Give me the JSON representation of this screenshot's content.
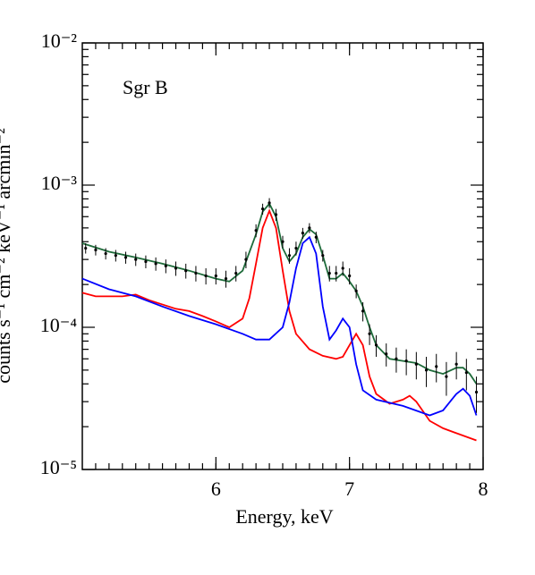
{
  "chart_data": {
    "type": "line",
    "annotation": "Sgr B",
    "xlabel": "Energy, keV",
    "ylabel": "counts s⁻¹ cm⁻² keV⁻¹ arcmin⁻²",
    "xlim": [
      5,
      8
    ],
    "ylim": [
      1e-05,
      0.01
    ],
    "ylog": true,
    "xticks": [
      6,
      7,
      8
    ],
    "xminorticks": [
      5.1,
      5.2,
      5.3,
      5.4,
      5.5,
      5.6,
      5.7,
      5.8,
      5.9,
      6,
      6.1,
      6.2,
      6.3,
      6.4,
      6.5,
      6.6,
      6.7,
      6.8,
      6.9,
      7,
      7.1,
      7.2,
      7.3,
      7.4,
      7.5,
      7.6,
      7.7,
      7.8,
      7.9
    ],
    "yticks": [
      {
        "value": 1e-05,
        "label": "10⁻⁵"
      },
      {
        "value": 0.0001,
        "label": "10⁻⁴"
      },
      {
        "value": 0.001,
        "label": "10⁻³"
      },
      {
        "value": 0.01,
        "label": "10⁻²"
      }
    ],
    "yminorticks": [
      2e-05,
      3e-05,
      4e-05,
      5e-05,
      6e-05,
      7e-05,
      8e-05,
      9e-05,
      0.0002,
      0.0003,
      0.0004,
      0.0005,
      0.0006,
      0.0007,
      0.0008,
      0.0009,
      0.002,
      0.003,
      0.004,
      0.005,
      0.006,
      0.007,
      0.008,
      0.009
    ],
    "data": {
      "color": "#000000",
      "x": [
        5.025,
        5.1,
        5.175,
        5.25,
        5.325,
        5.4,
        5.475,
        5.55,
        5.625,
        5.7,
        5.775,
        5.85,
        5.925,
        6.0,
        6.075,
        6.15,
        6.225,
        6.3,
        6.35,
        6.4,
        6.45,
        6.5,
        6.55,
        6.6,
        6.65,
        6.7,
        6.75,
        6.8,
        6.85,
        6.9,
        6.95,
        7.0,
        7.05,
        7.1,
        7.15,
        7.2,
        7.275,
        7.35,
        7.425,
        7.5,
        7.575,
        7.65,
        7.725,
        7.8,
        7.875,
        7.95
      ],
      "values": [
        0.00036,
        0.00035,
        0.00033,
        0.00032,
        0.00031,
        0.0003,
        0.00029,
        0.00028,
        0.00027,
        0.00026,
        0.00025,
        0.00024,
        0.00023,
        0.00023,
        0.00022,
        0.00024,
        0.0003,
        0.00048,
        0.00068,
        0.00075,
        0.00062,
        0.0004,
        0.00032,
        0.00036,
        0.00046,
        0.0005,
        0.00043,
        0.00032,
        0.00024,
        0.00024,
        0.00026,
        0.00023,
        0.00018,
        0.00013,
        9e-05,
        7.5e-05,
        6.5e-05,
        6e-05,
        5.8e-05,
        5.5e-05,
        5e-05,
        5.3e-05,
        4.5e-05,
        5.5e-05,
        4.8e-05,
        3.5e-05
      ],
      "errors": [
        3e-05,
        3e-05,
        3e-05,
        3e-05,
        3e-05,
        3e-05,
        3e-05,
        3e-05,
        3e-05,
        3e-05,
        3e-05,
        3e-05,
        3e-05,
        3e-05,
        3e-05,
        3e-05,
        4e-05,
        5e-05,
        6e-05,
        6e-05,
        6e-05,
        4e-05,
        4e-05,
        4e-05,
        4e-05,
        4e-05,
        4e-05,
        3e-05,
        3e-05,
        3e-05,
        3e-05,
        3e-05,
        2e-05,
        2e-05,
        1.5e-05,
        1.3e-05,
        1.2e-05,
        1.2e-05,
        1.2e-05,
        1.2e-05,
        1.2e-05,
        1.2e-05,
        1.2e-05,
        1.2e-05,
        1.2e-05,
        1e-05
      ]
    },
    "series": [
      {
        "color": "#1e6b3a",
        "x": [
          5.0,
          5.2,
          5.4,
          5.6,
          5.8,
          6.0,
          6.1,
          6.2,
          6.3,
          6.35,
          6.4,
          6.45,
          6.5,
          6.55,
          6.6,
          6.65,
          6.7,
          6.75,
          6.8,
          6.85,
          6.9,
          6.95,
          7.0,
          7.05,
          7.1,
          7.15,
          7.2,
          7.3,
          7.4,
          7.5,
          7.6,
          7.7,
          7.8,
          7.85,
          7.9,
          7.95
        ],
        "values": [
          0.00039,
          0.00034,
          0.00031,
          0.00028,
          0.00025,
          0.00022,
          0.00021,
          0.00025,
          0.00045,
          0.00065,
          0.00074,
          0.0006,
          0.00036,
          0.00029,
          0.00033,
          0.00043,
          0.00049,
          0.00045,
          0.00032,
          0.00022,
          0.00022,
          0.00024,
          0.00021,
          0.00018,
          0.00014,
          0.0001,
          7.5e-05,
          6e-05,
          5.8e-05,
          5.6e-05,
          5e-05,
          4.7e-05,
          5.2e-05,
          5.2e-05,
          4.7e-05,
          4e-05
        ]
      },
      {
        "color": "#ff0000",
        "x": [
          5.0,
          5.1,
          5.3,
          5.4,
          5.5,
          5.7,
          5.8,
          5.9,
          6.0,
          6.1,
          6.2,
          6.25,
          6.3,
          6.35,
          6.4,
          6.45,
          6.5,
          6.55,
          6.6,
          6.7,
          6.8,
          6.9,
          6.95,
          7.0,
          7.05,
          7.1,
          7.15,
          7.2,
          7.3,
          7.4,
          7.45,
          7.5,
          7.6,
          7.7,
          7.8,
          7.95
        ],
        "values": [
          0.000175,
          0.000165,
          0.000165,
          0.00017,
          0.000155,
          0.000135,
          0.00013,
          0.00012,
          0.00011,
          0.0001,
          0.000115,
          0.00016,
          0.00028,
          0.0005,
          0.00066,
          0.0005,
          0.00025,
          0.00013,
          9e-05,
          7e-05,
          6.3e-05,
          6e-05,
          6.2e-05,
          7.5e-05,
          9e-05,
          7.5e-05,
          4.5e-05,
          3.4e-05,
          2.9e-05,
          3.1e-05,
          3.3e-05,
          3e-05,
          2.2e-05,
          1.95e-05,
          1.8e-05,
          1.6e-05
        ]
      },
      {
        "color": "#0000ff",
        "x": [
          5.0,
          5.2,
          5.4,
          5.6,
          5.8,
          6.0,
          6.2,
          6.3,
          6.4,
          6.5,
          6.55,
          6.6,
          6.65,
          6.7,
          6.75,
          6.8,
          6.85,
          6.9,
          6.95,
          7.0,
          7.05,
          7.1,
          7.2,
          7.4,
          7.6,
          7.7,
          7.8,
          7.85,
          7.9,
          7.95
        ],
        "values": [
          0.00022,
          0.000185,
          0.000165,
          0.00014,
          0.00012,
          0.000105,
          9e-05,
          8.2e-05,
          8.2e-05,
          0.0001,
          0.00015,
          0.00026,
          0.00039,
          0.00043,
          0.00033,
          0.00014,
          8.2e-05,
          9.5e-05,
          0.000115,
          0.0001,
          5.5e-05,
          3.6e-05,
          3.1e-05,
          2.8e-05,
          2.4e-05,
          2.6e-05,
          3.4e-05,
          3.7e-05,
          3.3e-05,
          2.4e-05
        ]
      }
    ]
  }
}
